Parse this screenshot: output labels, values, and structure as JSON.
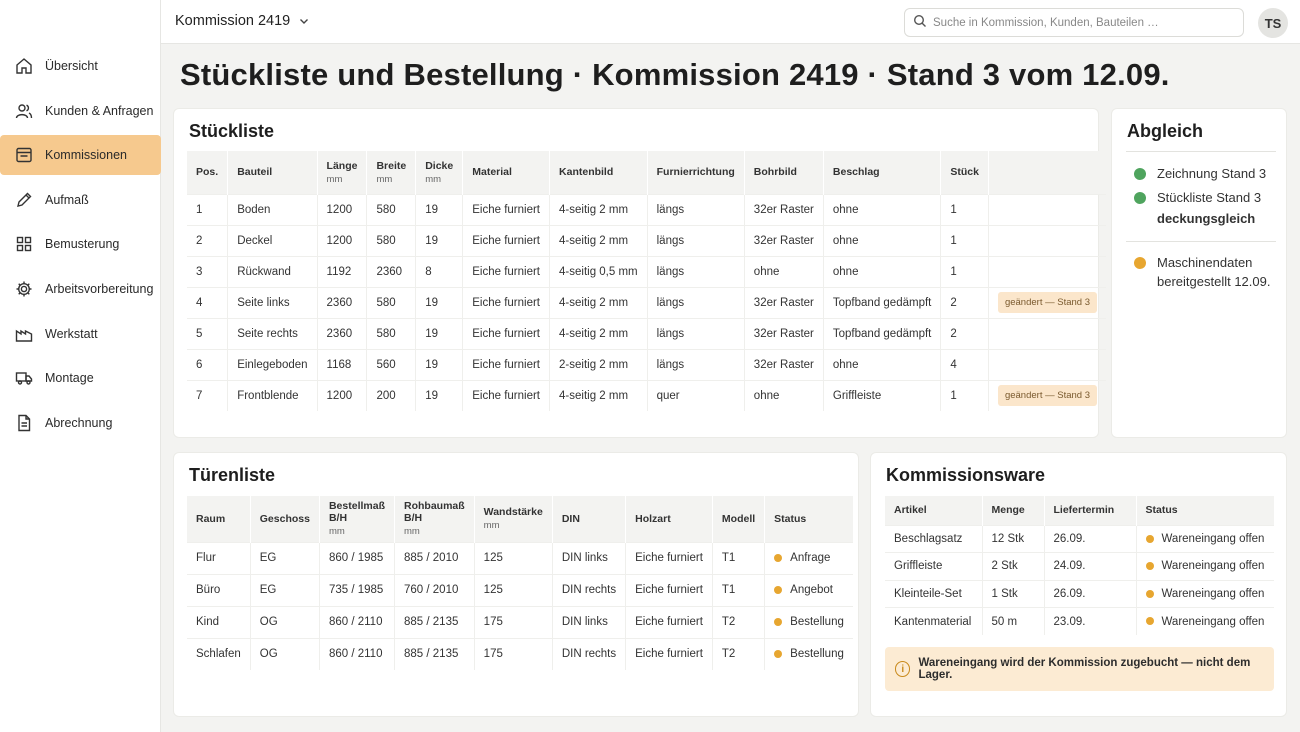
{
  "nav": [
    {
      "label": "Übersicht",
      "icon": "home-icon"
    },
    {
      "label": "Kunden & Anfragen",
      "icon": "users-icon"
    },
    {
      "label": "Kommissionen",
      "icon": "folder-icon",
      "active": true
    },
    {
      "label": "Aufmaß",
      "icon": "pencil-icon"
    },
    {
      "label": "Bemusterung",
      "icon": "grid-icon"
    },
    {
      "label": "Arbeitsvorbereitung",
      "icon": "gear-icon"
    },
    {
      "label": "Werkstatt",
      "icon": "factory-icon"
    },
    {
      "label": "Montage",
      "icon": "truck-icon"
    },
    {
      "label": "Abrechnung",
      "icon": "document-icon"
    }
  ],
  "header": {
    "project": "Kommission 2419",
    "search_placeholder": "Suche in Kommission, Kunden, Bauteilen …",
    "avatar": "TS"
  },
  "page_title": "Stückliste und Bestellung · Kommission 2419 · Stand 3 vom 12.09.",
  "stueckliste": {
    "title": "Stückliste",
    "headers": [
      "Pos.",
      "Bauteil",
      "Länge",
      "Breite",
      "Dicke",
      "Material",
      "Kantenbild",
      "Furnierrichtung",
      "Bohrbild",
      "Beschlag",
      "Stück",
      ""
    ],
    "units": [
      "",
      "",
      "mm",
      "mm",
      "mm",
      "",
      "",
      "",
      "",
      "",
      "",
      ""
    ],
    "rows": [
      [
        "1",
        "Boden",
        "1200",
        "580",
        "19",
        "Eiche furniert",
        "4-seitig 2 mm",
        "längs",
        "32er Raster",
        "ohne",
        "1",
        ""
      ],
      [
        "2",
        "Deckel",
        "1200",
        "580",
        "19",
        "Eiche furniert",
        "4-seitig 2 mm",
        "längs",
        "32er Raster",
        "ohne",
        "1",
        ""
      ],
      [
        "3",
        "Rückwand",
        "1192",
        "2360",
        "8",
        "Eiche furniert",
        "4-seitig 0,5 mm",
        "längs",
        "ohne",
        "ohne",
        "1",
        ""
      ],
      [
        "4",
        "Seite links",
        "2360",
        "580",
        "19",
        "Eiche furniert",
        "4-seitig 2 mm",
        "längs",
        "32er Raster",
        "Topfband gedämpft",
        "2",
        "geändert — Stand 3"
      ],
      [
        "5",
        "Seite rechts",
        "2360",
        "580",
        "19",
        "Eiche furniert",
        "4-seitig 2 mm",
        "längs",
        "32er Raster",
        "Topfband gedämpft",
        "2",
        ""
      ],
      [
        "6",
        "Einlegeboden",
        "1168",
        "560",
        "19",
        "Eiche furniert",
        "2-seitig 2 mm",
        "längs",
        "32er Raster",
        "ohne",
        "4",
        ""
      ],
      [
        "7",
        "Frontblende",
        "1200",
        "200",
        "19",
        "Eiche furniert",
        "4-seitig 2 mm",
        "quer",
        "ohne",
        "Griffleiste",
        "1",
        "geändert — Stand 3"
      ]
    ]
  },
  "abgleich": {
    "title": "Abgleich",
    "item1": "Zeichnung Stand 3",
    "item2": "Stückliste Stand 3",
    "item2_bold": "deckungsgleich",
    "item3_line1": "Maschinendaten",
    "item3_line2": "bereitgestellt 12.09.",
    "colors": {
      "ok": "#4fa45e",
      "pending": "#e7a630"
    }
  },
  "tueren": {
    "title": "Türenliste",
    "headers": [
      "Raum",
      "Geschoss",
      "Bestellmaß B/H",
      "Rohbaumaß B/H",
      "Wandstärke",
      "DIN",
      "Holzart",
      "Modell",
      "Status"
    ],
    "units": [
      "",
      "",
      "mm",
      "mm",
      "mm",
      "",
      "",
      "",
      ""
    ],
    "rows": [
      [
        "Flur",
        "EG",
        "860 / 1985",
        "885 / 2010",
        "125",
        "DIN links",
        "Eiche furniert",
        "T1",
        "Anfrage"
      ],
      [
        "Büro",
        "EG",
        "735 / 1985",
        "760 / 2010",
        "125",
        "DIN rechts",
        "Eiche furniert",
        "T1",
        "Angebot"
      ],
      [
        "Kind",
        "OG",
        "860 / 2110",
        "885 / 2135",
        "175",
        "DIN links",
        "Eiche furniert",
        "T2",
        "Bestellung"
      ],
      [
        "Schlafen",
        "OG",
        "860 / 2110",
        "885 / 2135",
        "175",
        "DIN rechts",
        "Eiche furniert",
        "T2",
        "Bestellung"
      ]
    ]
  },
  "ware": {
    "title": "Kommissionsware",
    "headers": [
      "Artikel",
      "Menge",
      "Liefertermin",
      "Status"
    ],
    "rows": [
      [
        "Beschlagsatz",
        "12 Stk",
        "26.09.",
        "Wareneingang offen"
      ],
      [
        "Griffleiste",
        "2 Stk",
        "24.09.",
        "Wareneingang offen"
      ],
      [
        "Kleinteile-Set",
        "1 Stk",
        "26.09.",
        "Wareneingang offen"
      ],
      [
        "Kantenmaterial",
        "50 m",
        "23.09.",
        "Wareneingang offen"
      ]
    ],
    "note": "Wareneingang wird der Kommission zugebucht — nicht dem Lager."
  }
}
